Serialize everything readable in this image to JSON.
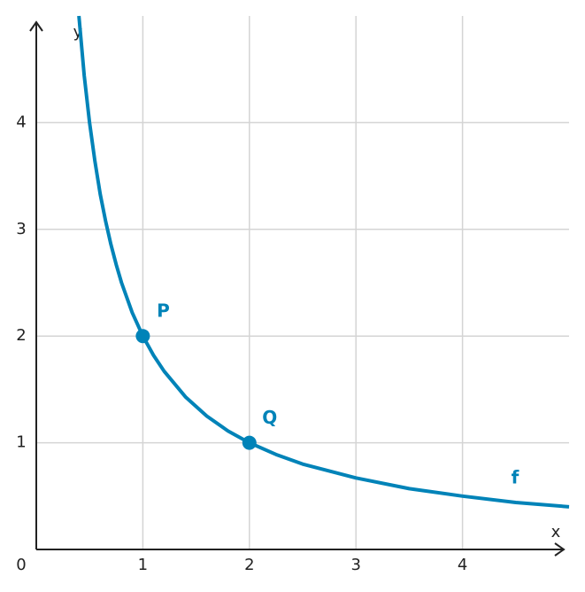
{
  "chart_data": {
    "type": "line",
    "x_label": "x",
    "y_label": "y",
    "origin_label": "0",
    "xlim": [
      0,
      5
    ],
    "ylim": [
      0,
      5
    ],
    "xticks": [
      1,
      2,
      3,
      4
    ],
    "yticks": [
      1,
      2,
      3,
      4
    ],
    "grid": true,
    "series": [
      {
        "name": "f",
        "color": "#0083b8",
        "x": [
          0.4,
          0.45,
          0.5,
          0.55,
          0.6,
          0.65,
          0.7,
          0.75,
          0.8,
          0.9,
          1,
          1.1,
          1.2,
          1.4,
          1.6,
          1.8,
          2,
          2.25,
          2.5,
          3,
          3.5,
          4,
          4.5,
          5
        ],
        "values": [
          5,
          4.44,
          4,
          3.64,
          3.33,
          3.08,
          2.86,
          2.67,
          2.5,
          2.22,
          2,
          1.82,
          1.67,
          1.43,
          1.25,
          1.11,
          1,
          0.89,
          0.8,
          0.67,
          0.57,
          0.5,
          0.44,
          0.4
        ]
      }
    ],
    "points": [
      {
        "label": "P",
        "x": 1,
        "y": 2
      },
      {
        "label": "Q",
        "x": 2,
        "y": 1
      }
    ]
  }
}
